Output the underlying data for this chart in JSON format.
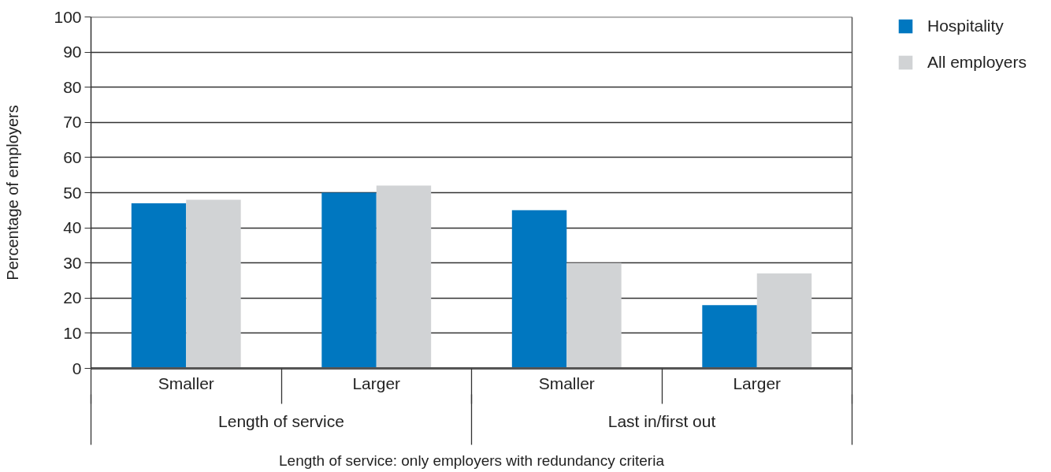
{
  "chart_data": {
    "type": "bar",
    "categories": [
      "Smaller",
      "Larger",
      "Smaller",
      "Larger"
    ],
    "series": [
      {
        "name": "Hospitality",
        "color": "#0077c0",
        "values": [
          47,
          50,
          45,
          18
        ]
      },
      {
        "name": "All employers",
        "color": "#d1d3d5",
        "values": [
          48,
          52,
          30,
          27
        ]
      }
    ],
    "ylabel": "Percentage of employers",
    "ylim": [
      0,
      100
    ],
    "yticks": [
      0,
      10,
      20,
      30,
      40,
      50,
      60,
      70,
      80,
      90,
      100
    ],
    "grid": "y",
    "legend": "top right",
    "annotations": [
      "Length of service",
      "Last in/first out",
      "Length of service: only employers with redundancy criteria"
    ]
  }
}
